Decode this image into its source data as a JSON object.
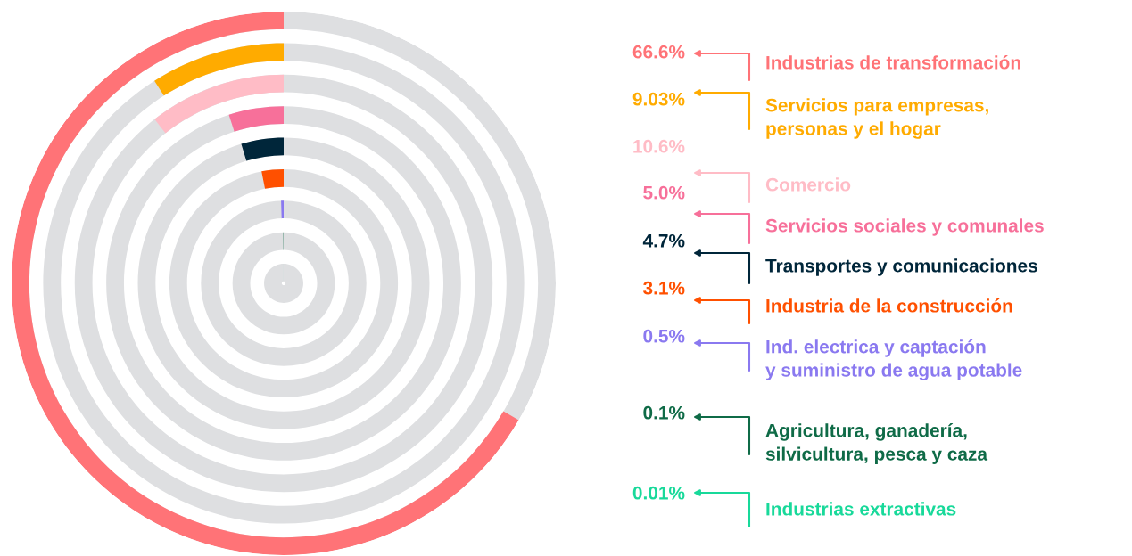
{
  "chart_data": {
    "type": "other",
    "categories": [
      "Industrias de transformación",
      "Servicios para empresas,\npersonas y el hogar",
      "Comercio",
      "Servicios sociales y comunales",
      "Transportes y comunicaciones",
      "Industria de la construcción",
      "Ind. electrica y captación\ny suministro de agua potable",
      "Agricultura, ganadería,\nsilvicultura, pesca y caza",
      "Industrias extractivas"
    ],
    "values": [
      66.6,
      9.03,
      10.6,
      5.0,
      4.7,
      3.1,
      0.5,
      0.1,
      0.01
    ],
    "value_labels": [
      "66.6%",
      "9.03%",
      "10.6%",
      "5.0%",
      "4.7%",
      "3.1%",
      "0.5%",
      "0.1%",
      "0.01%"
    ],
    "colors": [
      "#ff7377",
      "#ffab00",
      "#ffbcc6",
      "#f7709a",
      "#00263a",
      "#ff5000",
      "#8a79f0",
      "#0f6b47",
      "#18d99a"
    ]
  }
}
